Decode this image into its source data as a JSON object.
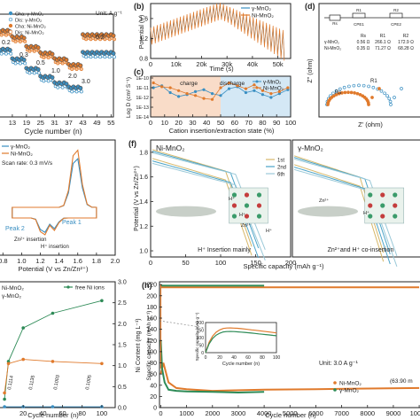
{
  "colors": {
    "gamma": "#3a8fc2",
    "ni": "#e07a2c",
    "green": "#2e8b57",
    "grey": "#9aa0a6",
    "axis": "#222222"
  },
  "panels": {
    "a": {
      "legend": [
        "Cha: γ-MnO₂",
        "Dis: γ-MnO₂",
        "Cha: Ni-MnO₂",
        "Dis: Ni-MnO₂"
      ],
      "unit": "Unit: A g⁻¹",
      "rate_labels": [
        "0.2",
        "0.3",
        "0.5",
        "1.0",
        "2.0",
        "3.0",
        "0.2"
      ],
      "xlabel": "Cycle number (n)"
    },
    "b": {
      "letter": "(b)",
      "ylabel": "Potential (V)",
      "xlabel": "Time (s)",
      "legend": [
        "γ-MnO₂",
        "Ni-MnO₂"
      ]
    },
    "c": {
      "letter": "(c)",
      "ylabel": "Log D (cm² S⁻¹)",
      "xlabel": "Cation insertion/extraction state (%)",
      "legend": [
        "γ-MnO₂",
        "Ni-MnO₂"
      ],
      "tag_charge": "charge",
      "tag_discharge": "discharge"
    },
    "d": {
      "letter": "(d)",
      "ylabel": "Z'' (ohm)",
      "xlabel": "Z' (ohm)",
      "table_head": [
        "",
        "Rs",
        "R1",
        "R2"
      ],
      "table_rows": [
        [
          "γ-MnO₂",
          "0.56 Ω",
          "266.1 Ω",
          "172.9 Ω"
        ],
        [
          "Ni-MnO₂",
          "0.35 Ω",
          "71.27 Ω",
          "68.28 Ω"
        ]
      ],
      "label_rs": "Rs",
      "label_r1": "R1",
      "circuit": [
        "Rs",
        "R1",
        "R2",
        "CPE1",
        "CPE2"
      ]
    },
    "e": {
      "legend": [
        "γ-MnO₂",
        "Ni-MnO₂"
      ],
      "scan": "Scan rate: 0.3 mV/s",
      "peak1": "Peak 1",
      "peak2": "Peak 2",
      "h_ins": "H⁺ insertion",
      "zn_ins": "Zn²⁺ insertion",
      "xlabel": "Potential (V vs Zn/Zn²⁺)"
    },
    "f": {
      "letter": "(f)",
      "ylabel": "Potential (V vs Zn/Zn²⁺)",
      "xlabel": "Specific capacity (mAh g⁻¹)",
      "left_title": "Ni-MnO₂",
      "right_title": "γ-MnO₂",
      "legend": [
        "1st",
        "2nd",
        "6th"
      ],
      "left_note": "H⁺ Insertion mainly",
      "right_note": "Zn²⁺and H⁺ co-insertion",
      "ions": [
        "H⁺",
        "H⁺",
        "Zn²⁺",
        "H⁺",
        "Zn²⁺",
        "H⁺"
      ]
    },
    "g": {
      "legend": [
        "Ni-MnO₂",
        "γ-MnO₂",
        "free Ni ions"
      ],
      "ylabel_right": "Ni Content (mg L⁻¹)",
      "xlabel": "Cycle number (n)",
      "ni_values": [
        "0.1114",
        "0.1135",
        "0.1003",
        "0.1005"
      ]
    },
    "h": {
      "letter": "(h)",
      "ylabel": "Specific capacity (mAh g⁻¹)",
      "xlabel": "Cycle number (n)",
      "unit": "Unit: 3.0 A g⁻¹",
      "legend": [
        "Ni-MnO₂",
        "γ-MnO₂"
      ],
      "note": "(63.90 m",
      "inset_ylabel": "Specific capacity (mAh g⁻¹)",
      "inset_xlabel": "Cycle number (n)"
    }
  },
  "chart_data": [
    {
      "type": "scatter",
      "panel": "a",
      "xlabel": "Cycle number (n)",
      "x_ticks": [
        13,
        19,
        25,
        31,
        37,
        43,
        49,
        55
      ],
      "xlim": [
        7,
        56
      ],
      "series": [
        {
          "name": "Ni-MnO₂",
          "segments": [
            [
              8,
              12,
              268
            ],
            [
              13,
              18,
              248
            ],
            [
              19,
              24,
              218
            ],
            [
              25,
              30,
              198
            ],
            [
              31,
              36,
              180
            ],
            [
              37,
              42,
              162
            ],
            [
              43,
              56,
              255
            ]
          ]
        },
        {
          "name": "γ-MnO₂",
          "segments": [
            [
              8,
              12,
              210
            ],
            [
              13,
              18,
              180
            ],
            [
              19,
              24,
              150
            ],
            [
              25,
              30,
              125
            ],
            [
              31,
              36,
              105
            ],
            [
              37,
              42,
              92
            ],
            [
              43,
              56,
              200
            ]
          ]
        }
      ]
    },
    {
      "type": "line",
      "panel": "b",
      "xlabel": "Time (s)",
      "ylabel": "Potential (V)",
      "x_ticks": [
        0,
        10000,
        20000,
        30000,
        40000,
        50000
      ],
      "x_tick_labels": [
        "0",
        "10k",
        "20k",
        "30k",
        "40k",
        "50k"
      ],
      "xlim": [
        0,
        55000
      ],
      "y_ticks": [
        0.8,
        1.2,
        1.6
      ],
      "ylim": [
        0.8,
        1.9
      ],
      "series": [
        {
          "name": "γ-MnO₂"
        },
        {
          "name": "Ni-MnO₂"
        }
      ]
    },
    {
      "type": "line",
      "panel": "c",
      "xlabel": "Cation insertion/extraction state (%)",
      "x_ticks": [
        0,
        10,
        20,
        30,
        40,
        50,
        60,
        70,
        80,
        90,
        100
      ],
      "xlim": [
        0,
        100
      ],
      "y_tick_labels": [
        "1E-10",
        "1E-11",
        "1E-12",
        "1E-13",
        "1E-14"
      ],
      "series": [
        {
          "name": "γ-MnO₂",
          "x": [
            2,
            8,
            14,
            20,
            26,
            32,
            38,
            44,
            50,
            56,
            62,
            68,
            74,
            80,
            86,
            92,
            98
          ],
          "y": [
            -11.0,
            -10.8,
            -11.5,
            -11.9,
            -11.7,
            -11.4,
            -11.2,
            -11.6,
            -11.8,
            -11.1,
            -10.9,
            -11.5,
            -11.3,
            -11.7,
            -12.0,
            -11.6,
            -11.2
          ]
        },
        {
          "name": "Ni-MnO₂",
          "x": [
            2,
            8,
            14,
            20,
            26,
            32,
            38,
            44,
            50,
            56,
            62,
            68,
            74,
            80,
            86,
            92,
            98
          ],
          "y": [
            -10.5,
            -10.9,
            -11.0,
            -11.3,
            -11.6,
            -11.8,
            -12.1,
            -12.2,
            -11.0,
            -10.5,
            -10.8,
            -11.1,
            -10.7,
            -11.3,
            -11.6,
            -11.4,
            -11.0
          ]
        }
      ]
    },
    {
      "type": "scatter",
      "panel": "d",
      "xlabel": "Z' (ohm)",
      "ylabel": "Z'' (ohm)",
      "series": [
        {
          "name": "γ-MnO₂"
        },
        {
          "name": "Ni-MnO₂"
        }
      ]
    },
    {
      "type": "line",
      "panel": "e",
      "xlabel": "Potential (V vs Zn/Zn²⁺)",
      "x_ticks": [
        0.8,
        1.0,
        1.2,
        1.4,
        1.6,
        1.8,
        2.0
      ],
      "xlim": [
        0.75,
        2.0
      ],
      "series": [
        {
          "name": "γ-MnO₂"
        },
        {
          "name": "Ni-MnO₂"
        }
      ]
    },
    {
      "type": "line",
      "panel": "f",
      "ylabel": "Potential (V vs Zn/Zn²⁺)",
      "xlabel": "Specific capacity (mAh g⁻¹)",
      "y_ticks": [
        1.0,
        1.2,
        1.4,
        1.6,
        1.8
      ],
      "ylim": [
        0.95,
        1.9
      ],
      "x_ticks": [
        0,
        50,
        100,
        150,
        200
      ],
      "series": [
        {
          "name": "1st"
        },
        {
          "name": "2nd"
        },
        {
          "name": "6th"
        }
      ]
    },
    {
      "type": "scatter",
      "panel": "g",
      "xlabel": "Cycle number (n)",
      "x_ticks": [
        20,
        40,
        60,
        80,
        100
      ],
      "xlim": [
        0,
        110
      ],
      "y2_ticks": [
        0.0,
        0.5,
        1.0,
        1.5,
        2.0,
        2.5,
        3.0
      ],
      "y2lim": [
        0,
        3.0
      ],
      "series": [
        {
          "name": "free Ni ions",
          "x": [
            1,
            5,
            20,
            50,
            100
          ],
          "y": [
            0.2,
            1.1,
            1.9,
            2.25,
            2.55
          ]
        },
        {
          "name": "Ni-MnO₂ (Ni content)",
          "x": [
            1,
            5,
            20,
            50,
            100
          ],
          "y": [
            0.35,
            1.05,
            1.15,
            1.1,
            1.05
          ]
        },
        {
          "name": "γ-MnO₂ (Ni content)",
          "x": [
            1,
            20,
            50,
            100
          ],
          "y": [
            0.02,
            0.02,
            0.02,
            0.02
          ]
        }
      ]
    },
    {
      "type": "scatter",
      "panel": "h",
      "xlabel": "Cycle number (n)",
      "ylabel": "Specific capacity (mAh g⁻¹)",
      "x_ticks": [
        0,
        1000,
        2000,
        3000,
        4000,
        5000,
        6000,
        7000,
        8000,
        9000,
        10000
      ],
      "xlim": [
        -50,
        10100
      ],
      "y_ticks": [
        0,
        20,
        40,
        60,
        80,
        100,
        120,
        140,
        160,
        180,
        200,
        220
      ],
      "ylim": [
        0,
        225
      ],
      "series": [
        {
          "name": "Ni-MnO₂",
          "x": [
            0,
            100,
            300,
            600,
            1000,
            2000,
            4000,
            6000,
            8000,
            10000
          ],
          "y": [
            60,
            80,
            45,
            35,
            33,
            30,
            32,
            33,
            34,
            35
          ]
        },
        {
          "name": "γ-MnO₂",
          "x": [
            0,
            50,
            150,
            300,
            600,
            1000,
            2000,
            3000,
            4000
          ],
          "y": [
            120,
            70,
            45,
            32,
            30,
            29,
            28,
            27,
            28
          ]
        }
      ],
      "inset": {
        "x_ticks": [
          0,
          20,
          40,
          60,
          80,
          100
        ],
        "y_ticks": [
          0,
          50,
          100,
          150,
          200
        ]
      }
    }
  ]
}
